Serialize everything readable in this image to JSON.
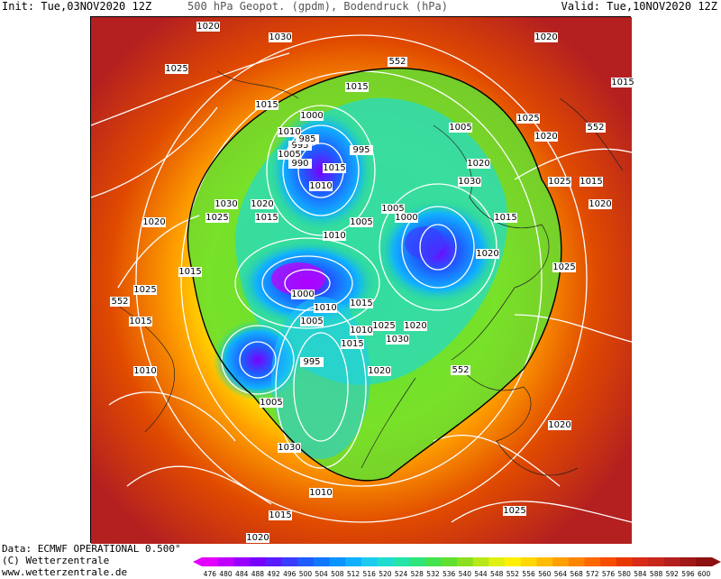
{
  "header": {
    "init": "Init: Tue,03NOV2020 12Z",
    "title": "500 hPa Geopot. (gpdm), Bodendruck (hPa)",
    "valid": "Valid: Tue,10NOV2020 12Z"
  },
  "footer": {
    "data_source": "Data: ECMWF OPERATIONAL 0.500°",
    "copyright": "(C) Wetterzentrale",
    "website": "www.wetterzentrale.de"
  },
  "colorbar": {
    "ticks": [
      "476",
      "480",
      "484",
      "488",
      "492",
      "496",
      "500",
      "504",
      "508",
      "512",
      "516",
      "520",
      "524",
      "528",
      "532",
      "536",
      "540",
      "544",
      "548",
      "552",
      "556",
      "560",
      "564",
      "568",
      "572",
      "576",
      "580",
      "584",
      "588",
      "592",
      "596",
      "600"
    ],
    "colors": [
      "#e400ff",
      "#c000ff",
      "#9a00ff",
      "#7800ff",
      "#5a1cff",
      "#3a3cff",
      "#1e5cff",
      "#1078ff",
      "#0a94ff",
      "#10b0ff",
      "#1ccaf0",
      "#20dcd0",
      "#24e4a8",
      "#30e47c",
      "#44e250",
      "#60e030",
      "#8ae020",
      "#b8e818",
      "#e0f010",
      "#fff000",
      "#ffd800",
      "#ffbc00",
      "#ffa000",
      "#ff8400",
      "#ff6800",
      "#f84c00",
      "#e83800",
      "#d82c18",
      "#c8281c",
      "#b42020",
      "#a01818",
      "#8c1010"
    ]
  },
  "map_labels": {
    "pressure": [
      "1020",
      "1025",
      "1030",
      "1015",
      "1010",
      "1005",
      "1000",
      "995",
      "990",
      "985",
      "1020",
      "1025",
      "1030",
      "1015",
      "1010",
      "1005",
      "1000",
      "995",
      "1015",
      "1010",
      "1005",
      "1020",
      "1025",
      "1030",
      "1015",
      "1020",
      "1025",
      "1015",
      "1020",
      "1015",
      "1020",
      "1015",
      "1020",
      "1025",
      "1010",
      "1005",
      "1020",
      "1015",
      "1025",
      "1015",
      "1020",
      "1010",
      "1015",
      "1030",
      "1025",
      "1020",
      "1015",
      "1010",
      "1005",
      "1000",
      "995",
      "1005",
      "1010",
      "1020",
      "1030",
      "1025",
      "1020",
      "1015"
    ],
    "geopotential": [
      "552",
      "552",
      "552",
      "552"
    ]
  }
}
